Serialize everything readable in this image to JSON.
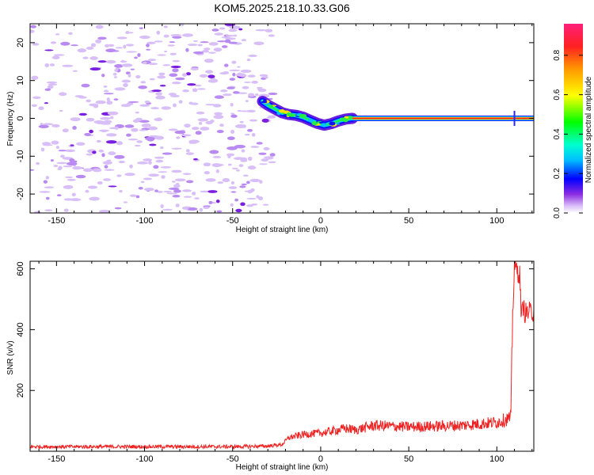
{
  "title": "KOM5.2025.218.10.33.G06",
  "chart_data": [
    {
      "type": "heatmap",
      "name": "spectrogram",
      "xlabel": "Height of straight line (km)",
      "ylabel": "Frequency (Hz)",
      "xlim": [
        -165,
        121
      ],
      "ylim": [
        -25,
        25
      ],
      "xticks": [
        -150,
        -100,
        -50,
        0,
        50,
        100
      ],
      "yticks": [
        -20,
        -10,
        0,
        10,
        20
      ],
      "noise_region_x": [
        -165,
        -30
      ],
      "signal_trace": {
        "x": [
          -33,
          -30,
          -26,
          -22,
          -18,
          -14,
          -10,
          -6,
          -2,
          2,
          6,
          10,
          14,
          18,
          30,
          60,
          90,
          110,
          121
        ],
        "freq": [
          4.5,
          3.5,
          2.5,
          1.5,
          1.0,
          0.8,
          0.3,
          -0.5,
          -1.3,
          -1.8,
          -1.4,
          -0.7,
          -0.2,
          0.0,
          0.0,
          0.0,
          0.0,
          0.0,
          0.0
        ]
      },
      "colorbar": {
        "label": "Normalized spectral amplitude",
        "range": [
          0.0,
          0.96
        ],
        "ticks": [
          0.0,
          0.2,
          0.4,
          0.6,
          0.8
        ]
      }
    },
    {
      "type": "line",
      "name": "snr",
      "xlabel": "Height of straight line (km)",
      "ylabel": "SNR (v/v)",
      "xlim": [
        -165,
        121
      ],
      "ylim": [
        0,
        625
      ],
      "xticks": [
        -150,
        -100,
        -50,
        0,
        50,
        100
      ],
      "yticks": [
        200,
        400,
        600
      ],
      "color": "#ee2222",
      "envelope": {
        "x": [
          -165,
          -50,
          -30,
          -22,
          -18,
          -10,
          0,
          10,
          14,
          20,
          30,
          50,
          80,
          100,
          108,
          109,
          110,
          113,
          114,
          115,
          116,
          121
        ],
        "snr": [
          15,
          15,
          17,
          22,
          45,
          55,
          60,
          70,
          75,
          70,
          85,
          80,
          85,
          95,
          110,
          450,
          610,
          580,
          440,
          480,
          455,
          460
        ]
      }
    }
  ]
}
